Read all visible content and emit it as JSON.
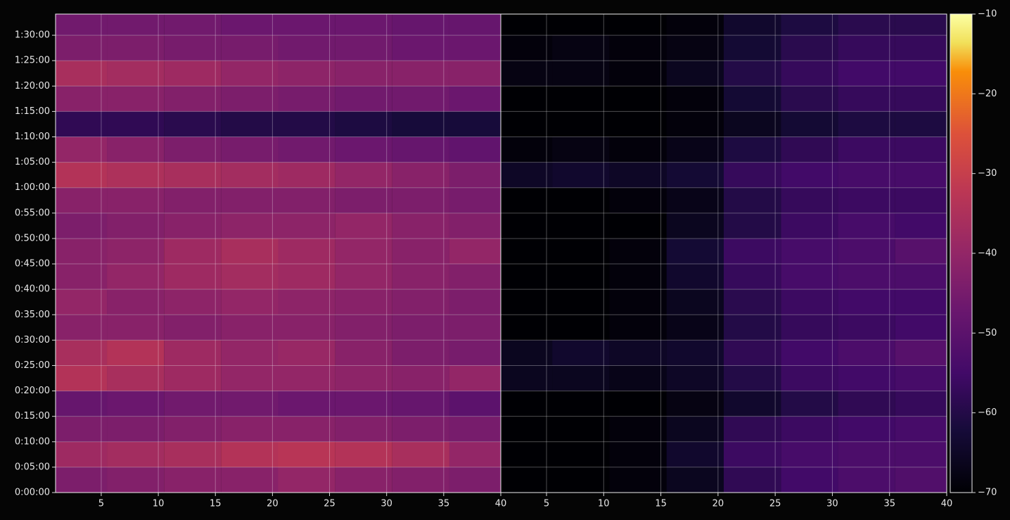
{
  "chart_data": [
    {
      "type": "heatmap",
      "colormap": "inferno",
      "grid": true,
      "x": [
        3,
        8,
        13,
        18,
        23,
        28,
        33,
        38
      ],
      "y": [
        150,
        450,
        750,
        1050,
        1350,
        1650,
        1950,
        2250,
        2550,
        2850,
        3150,
        3450,
        3750,
        4050,
        4350,
        4650,
        4950,
        5250,
        5550
      ],
      "z": [
        [
          -44,
          -43,
          -42,
          -42,
          -40,
          -42,
          -43,
          -44
        ],
        [
          -38,
          -37,
          -36,
          -34,
          -33,
          -34,
          -36,
          -40
        ],
        [
          -44,
          -44,
          -43,
          -42,
          -42,
          -43,
          -44,
          -45
        ],
        [
          -48,
          -47,
          -46,
          -46,
          -47,
          -47,
          -48,
          -50
        ],
        [
          -34,
          -36,
          -38,
          -40,
          -40,
          -41,
          -42,
          -40
        ],
        [
          -36,
          -34,
          -38,
          -40,
          -39,
          -42,
          -44,
          -45
        ],
        [
          -42,
          -42,
          -43,
          -42,
          -42,
          -43,
          -44,
          -44
        ],
        [
          -40,
          -42,
          -41,
          -40,
          -41,
          -42,
          -43,
          -44
        ],
        [
          -42,
          -40,
          -38,
          -37,
          -38,
          -40,
          -42,
          -43
        ],
        [
          -42,
          -41,
          -38,
          -36,
          -38,
          -40,
          -42,
          -40
        ],
        [
          -44,
          -43,
          -42,
          -41,
          -41,
          -40,
          -42,
          -43
        ],
        [
          -42,
          -42,
          -43,
          -43,
          -43,
          -44,
          -44,
          -45
        ],
        [
          -34,
          -35,
          -36,
          -37,
          -38,
          -40,
          -42,
          -44
        ],
        [
          -40,
          -42,
          -44,
          -45,
          -46,
          -47,
          -48,
          -49
        ],
        [
          -58,
          -58,
          -59,
          -60,
          -60,
          -61,
          -62,
          -62
        ],
        [
          -42,
          -42,
          -43,
          -44,
          -45,
          -46,
          -46,
          -47
        ],
        [
          -36,
          -37,
          -38,
          -40,
          -41,
          -42,
          -42,
          -42
        ],
        [
          -44,
          -44,
          -45,
          -45,
          -46,
          -46,
          -47,
          -47
        ],
        [
          -46,
          -46,
          -46,
          -47,
          -47,
          -47,
          -48,
          -48
        ]
      ],
      "xlim": [
        1,
        40
      ],
      "ylim": [
        0,
        5650
      ],
      "xticks": [
        5,
        10,
        15,
        20,
        25,
        30,
        35,
        40
      ],
      "yticks": [
        {
          "value": 0,
          "label": "0:00:00"
        },
        {
          "value": 300,
          "label": "0:05:00"
        },
        {
          "value": 600,
          "label": "0:10:00"
        },
        {
          "value": 900,
          "label": "0:15:00"
        },
        {
          "value": 1200,
          "label": "0:20:00"
        },
        {
          "value": 1500,
          "label": "0:25:00"
        },
        {
          "value": 1800,
          "label": "0:30:00"
        },
        {
          "value": 2100,
          "label": "0:35:00"
        },
        {
          "value": 2400,
          "label": "0:40:00"
        },
        {
          "value": 2700,
          "label": "0:45:00"
        },
        {
          "value": 3000,
          "label": "0:50:00"
        },
        {
          "value": 3300,
          "label": "0:55:00"
        },
        {
          "value": 3600,
          "label": "1:00:00"
        },
        {
          "value": 3900,
          "label": "1:05:00"
        },
        {
          "value": 4200,
          "label": "1:10:00"
        },
        {
          "value": 4500,
          "label": "1:15:00"
        },
        {
          "value": 4800,
          "label": "1:20:00"
        },
        {
          "value": 5100,
          "label": "1:25:00"
        },
        {
          "value": 5400,
          "label": "1:30:00"
        }
      ],
      "clim": [
        -70,
        -10
      ],
      "cticks": [
        {
          "value": -70,
          "label": "−70"
        },
        {
          "value": -60,
          "label": "−60"
        },
        {
          "value": -50,
          "label": "−50"
        },
        {
          "value": -40,
          "label": "−40"
        },
        {
          "value": -30,
          "label": "−30"
        },
        {
          "value": -20,
          "label": "−20"
        },
        {
          "value": -10,
          "label": "−10"
        }
      ]
    },
    {
      "type": "heatmap",
      "colormap": "inferno",
      "grid": true,
      "x": [
        3,
        8,
        13,
        18,
        23,
        28,
        33,
        38
      ],
      "y": [
        150,
        450,
        750,
        1050,
        1350,
        1650,
        1950,
        2250,
        2550,
        2850,
        3150,
        3450,
        3750,
        4050,
        4350,
        4650,
        4950,
        5250,
        5550
      ],
      "z": [
        [
          -70,
          -70,
          -69,
          -66,
          -58,
          -55,
          -53,
          -52
        ],
        [
          -70,
          -70,
          -69,
          -64,
          -56,
          -54,
          -53,
          -53
        ],
        [
          -70,
          -70,
          -69,
          -66,
          -58,
          -56,
          -55,
          -54
        ],
        [
          -70,
          -70,
          -70,
          -68,
          -64,
          -60,
          -58,
          -57
        ],
        [
          -66,
          -66,
          -67,
          -65,
          -60,
          -56,
          -55,
          -54
        ],
        [
          -66,
          -64,
          -65,
          -64,
          -58,
          -55,
          -53,
          -51
        ],
        [
          -70,
          -70,
          -69,
          -67,
          -60,
          -57,
          -56,
          -55
        ],
        [
          -70,
          -70,
          -69,
          -66,
          -59,
          -56,
          -55,
          -55
        ],
        [
          -70,
          -70,
          -69,
          -64,
          -57,
          -54,
          -53,
          -53
        ],
        [
          -70,
          -70,
          -69,
          -63,
          -56,
          -54,
          -53,
          -51
        ],
        [
          -70,
          -70,
          -70,
          -66,
          -60,
          -56,
          -54,
          -55
        ],
        [
          -70,
          -70,
          -69,
          -67,
          -60,
          -57,
          -56,
          -56
        ],
        [
          -65,
          -64,
          -65,
          -63,
          -57,
          -55,
          -54,
          -54
        ],
        [
          -69,
          -68,
          -69,
          -67,
          -61,
          -58,
          -56,
          -56
        ],
        [
          -70,
          -70,
          -70,
          -69,
          -66,
          -63,
          -61,
          -61
        ],
        [
          -70,
          -70,
          -70,
          -69,
          -63,
          -59,
          -57,
          -57
        ],
        [
          -68,
          -68,
          -69,
          -66,
          -60,
          -57,
          -55,
          -55
        ],
        [
          -69,
          -68,
          -69,
          -68,
          -63,
          -59,
          -57,
          -57
        ],
        [
          -70,
          -70,
          -70,
          -69,
          -64,
          -61,
          -59,
          -59
        ]
      ],
      "xlim": [
        1,
        40
      ],
      "ylim": [
        0,
        5650
      ],
      "xticks": [
        5,
        10,
        15,
        20,
        25,
        30,
        35,
        40
      ]
    }
  ]
}
